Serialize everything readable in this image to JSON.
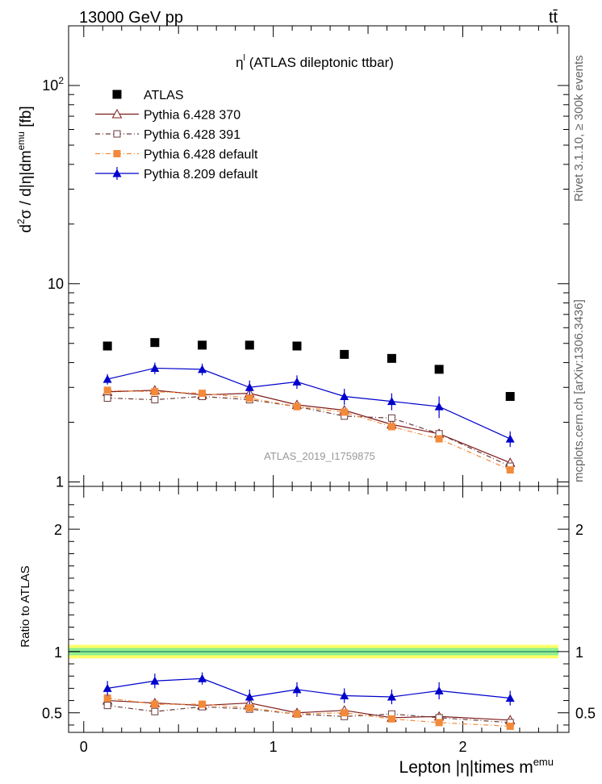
{
  "header": {
    "energy_label": "13000 GeV pp",
    "process_label": "tt̄"
  },
  "side_labels": {
    "rivet": "Rivet 3.1.10, ≥ 300k events",
    "mcplots": "mcplots.cern.ch [arXiv:1306.3436]"
  },
  "watermark": "ATLAS_2019_I1759875",
  "chart_data": [
    {
      "type": "scatter",
      "title": "η^l (ATLAS dileptonic ttbar)",
      "ylabel": "d²σ / d|η|dm^emu [fb]",
      "yscale": "log",
      "ylim": [
        0.95,
        200
      ],
      "xlim": [
        -0.08,
        2.56
      ],
      "x": [
        0.125,
        0.375,
        0.625,
        0.875,
        1.125,
        1.375,
        1.625,
        1.875,
        2.25
      ],
      "y_tick_labels": [
        "1",
        "10",
        "10²"
      ],
      "legend_position": "top-left",
      "series": [
        {
          "name": "ATLAS",
          "marker": "filled-square",
          "color": "#000000",
          "values": [
            4.85,
            5.05,
            4.9,
            4.9,
            4.85,
            4.4,
            4.2,
            3.7,
            2.7
          ]
        },
        {
          "name": "Pythia 6.428 370",
          "marker": "open-triangle",
          "color": "#7f1a1a",
          "line": "solid",
          "values": [
            2.85,
            2.9,
            2.75,
            2.8,
            2.45,
            2.3,
            1.95,
            1.75,
            1.25
          ]
        },
        {
          "name": "Pythia 6.428 391",
          "marker": "open-square",
          "color": "#6b3a3a",
          "line": "dash-dot",
          "values": [
            2.65,
            2.6,
            2.7,
            2.6,
            2.4,
            2.15,
            2.1,
            1.75,
            1.2
          ]
        },
        {
          "name": "Pythia 6.428 default",
          "marker": "filled-square",
          "color": "#f28a3a",
          "line": "dash-dot",
          "values": [
            2.9,
            2.85,
            2.8,
            2.65,
            2.4,
            2.25,
            1.9,
            1.65,
            1.15
          ]
        },
        {
          "name": "Pythia 8.209 default",
          "marker": "filled-triangle",
          "color": "#0000cc",
          "line": "solid",
          "values": [
            3.3,
            3.75,
            3.7,
            3.0,
            3.2,
            2.7,
            2.55,
            2.4,
            1.65
          ],
          "errors": [
            0.2,
            0.25,
            0.25,
            0.25,
            0.25,
            0.25,
            0.25,
            0.3,
            0.15
          ]
        }
      ]
    },
    {
      "type": "scatter",
      "ylabel": "Ratio to ATLAS",
      "xlabel": "Lepton |η|times m^emu",
      "ylim": [
        0.34,
        2.35
      ],
      "xlim": [
        -0.08,
        2.56
      ],
      "x": [
        0.125,
        0.375,
        0.625,
        0.875,
        1.125,
        1.375,
        1.625,
        1.875,
        2.25
      ],
      "x_tick_labels": [
        "0",
        "1",
        "2"
      ],
      "y_tick_labels": [
        "0.5",
        "1",
        "2"
      ],
      "bands": {
        "inner_color": "#90ee90",
        "outer_color": "#ffff66",
        "inner_half_width": 0.03,
        "outer_half_width": 0.055
      },
      "series": [
        {
          "name": "Pythia 6.428 370",
          "values": [
            0.6,
            0.58,
            0.56,
            0.58,
            0.5,
            0.52,
            0.46,
            0.47,
            0.44
          ]
        },
        {
          "name": "Pythia 6.428 391",
          "values": [
            0.56,
            0.51,
            0.55,
            0.53,
            0.49,
            0.47,
            0.49,
            0.46,
            0.42
          ]
        },
        {
          "name": "Pythia 6.428 default",
          "values": [
            0.62,
            0.57,
            0.57,
            0.54,
            0.49,
            0.5,
            0.45,
            0.42,
            0.39
          ]
        },
        {
          "name": "Pythia 8.209 default",
          "values": [
            0.7,
            0.76,
            0.78,
            0.63,
            0.69,
            0.64,
            0.63,
            0.68,
            0.62
          ],
          "errors": [
            0.06,
            0.06,
            0.05,
            0.06,
            0.06,
            0.06,
            0.06,
            0.07,
            0.06
          ]
        }
      ]
    }
  ]
}
